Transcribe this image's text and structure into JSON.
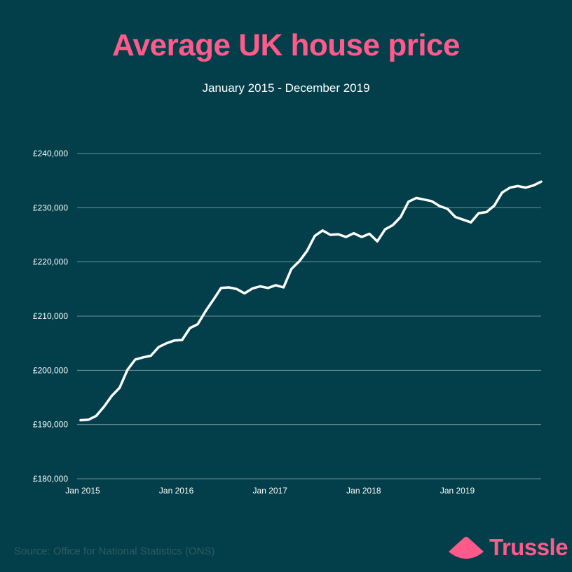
{
  "title": "Average UK house price",
  "subtitle": "January 2015 - December 2019",
  "source": "Source: Office for National Statistics (ONS)",
  "brand": "Trussle",
  "colors": {
    "background": "#023f4a",
    "accent": "#ff5a8a",
    "line": "#ffffff",
    "grid": "#6f8f95"
  },
  "chart_data": {
    "type": "line",
    "title": "Average UK house price",
    "subtitle": "January 2015 - December 2019",
    "xlabel": "",
    "ylabel": "",
    "ylim": [
      180000,
      240000
    ],
    "yticks": [
      180000,
      190000,
      200000,
      210000,
      220000,
      230000,
      240000
    ],
    "ytick_labels": [
      "£180,000",
      "£190,000",
      "£200,000",
      "£210,000",
      "£220,000",
      "£230,000",
      "£240,000"
    ],
    "xtick_labels": [
      "Jan 2015",
      "Jan 2016",
      "Jan 2017",
      "Jan 2018",
      "Jan 2019"
    ],
    "xtick_months": [
      0,
      12,
      24,
      36,
      48
    ],
    "month_count": 60,
    "grid": true,
    "series": [
      {
        "name": "Average UK house price",
        "values": [
          190800,
          190900,
          191600,
          193300,
          195300,
          196800,
          200100,
          202000,
          202400,
          202700,
          204300,
          205000,
          205500,
          205600,
          207800,
          208500,
          210900,
          213000,
          215200,
          215300,
          215000,
          214200,
          215100,
          215500,
          215200,
          215700,
          215300,
          218700,
          220100,
          222000,
          224800,
          225800,
          225000,
          225100,
          224600,
          225300,
          224600,
          225200,
          223800,
          226000,
          226800,
          228300,
          231100,
          231800,
          231500,
          231200,
          230300,
          229800,
          228300,
          227800,
          227300,
          229000,
          229200,
          230400,
          232800,
          233700,
          234000,
          233700,
          234100,
          234800
        ]
      }
    ]
  }
}
